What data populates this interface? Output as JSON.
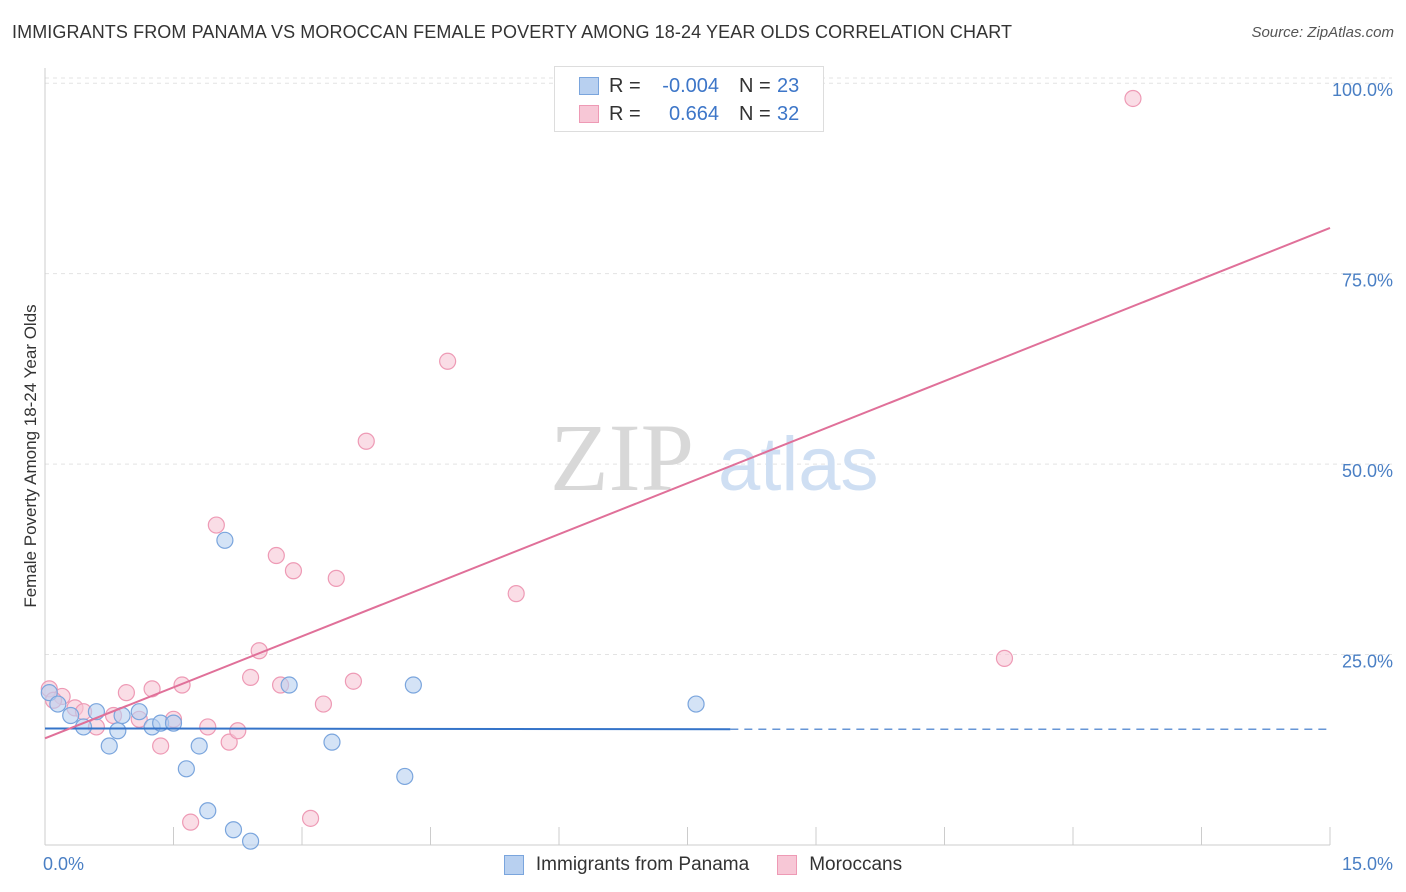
{
  "colors": {
    "series1_fill": "#b8d0f0",
    "series1_stroke": "#7aa5dd",
    "series1_line": "#3574c9",
    "series2_fill": "#f7c7d6",
    "series2_stroke": "#ee9ab5",
    "series2_line": "#e07099",
    "grid": "#e3e3e3",
    "axis_label": "#4a7fc4",
    "watermark": "#d8d8d8"
  },
  "chart_data": {
    "type": "scatter",
    "title": "IMMIGRANTS FROM PANAMA VS MOROCCAN FEMALE POVERTY AMONG 18-24 YEAR OLDS CORRELATION CHART",
    "source": "Source: ZipAtlas.com",
    "watermark": {
      "zip": "ZIP",
      "atlas": "atlas"
    },
    "xlabel": "",
    "ylabel": "Female Poverty Among 18-24 Year Olds",
    "xlim": [
      0,
      15
    ],
    "ylim": [
      0,
      102
    ],
    "x_tick_labels": [
      "0.0%",
      "15.0%"
    ],
    "y_ticks": [
      25,
      50,
      75,
      100
    ],
    "y_tick_labels": [
      "25.0%",
      "50.0%",
      "75.0%",
      "100.0%"
    ],
    "grid": true,
    "legend_position": "top-center",
    "series": [
      {
        "name": "Immigrants from Panama",
        "r_label": "R =",
        "r": "-0.004",
        "n_label": "N =",
        "n": "23",
        "trend": {
          "x0": 0,
          "y0": 15.3,
          "x1": 8.0,
          "y1": 15.2,
          "dash_to": 15,
          "dash_y": 15.2
        },
        "points": [
          [
            0.05,
            20.0
          ],
          [
            0.15,
            18.5
          ],
          [
            0.3,
            17.0
          ],
          [
            0.45,
            15.5
          ],
          [
            0.6,
            17.5
          ],
          [
            0.75,
            13.0
          ],
          [
            0.85,
            15.0
          ],
          [
            1.1,
            17.5
          ],
          [
            1.25,
            15.5
          ],
          [
            1.35,
            16.0
          ],
          [
            1.5,
            16.0
          ],
          [
            1.65,
            10.0
          ],
          [
            1.8,
            13.0
          ],
          [
            1.9,
            4.5
          ],
          [
            2.1,
            40.0
          ],
          [
            2.2,
            2.0
          ],
          [
            2.4,
            0.5
          ],
          [
            2.85,
            21.0
          ],
          [
            3.35,
            13.5
          ],
          [
            4.2,
            9.0
          ],
          [
            4.3,
            21.0
          ],
          [
            7.6,
            18.5
          ],
          [
            0.9,
            17.0
          ]
        ]
      },
      {
        "name": "Moroccans",
        "r_label": "R =",
        "r": "0.664",
        "n_label": "N =",
        "n": "32",
        "trend": {
          "x0": 0,
          "y0": 14.0,
          "x1": 15,
          "y1": 81.0
        },
        "points": [
          [
            0.05,
            20.5
          ],
          [
            0.2,
            19.5
          ],
          [
            0.35,
            18.0
          ],
          [
            0.45,
            17.5
          ],
          [
            0.6,
            15.5
          ],
          [
            0.8,
            17.0
          ],
          [
            0.95,
            20.0
          ],
          [
            1.1,
            16.5
          ],
          [
            1.25,
            20.5
          ],
          [
            1.35,
            13.0
          ],
          [
            1.5,
            16.5
          ],
          [
            1.6,
            21.0
          ],
          [
            1.7,
            3.0
          ],
          [
            1.9,
            15.5
          ],
          [
            2.0,
            42.0
          ],
          [
            2.15,
            13.5
          ],
          [
            2.25,
            15.0
          ],
          [
            2.4,
            22.0
          ],
          [
            2.5,
            25.5
          ],
          [
            2.7,
            38.0
          ],
          [
            2.75,
            21.0
          ],
          [
            2.9,
            36.0
          ],
          [
            3.1,
            3.5
          ],
          [
            3.25,
            18.5
          ],
          [
            3.4,
            35.0
          ],
          [
            3.6,
            21.5
          ],
          [
            3.75,
            53.0
          ],
          [
            4.7,
            63.5
          ],
          [
            5.5,
            33.0
          ],
          [
            11.2,
            24.5
          ],
          [
            12.7,
            98.0
          ],
          [
            0.1,
            19.0
          ]
        ]
      }
    ]
  }
}
